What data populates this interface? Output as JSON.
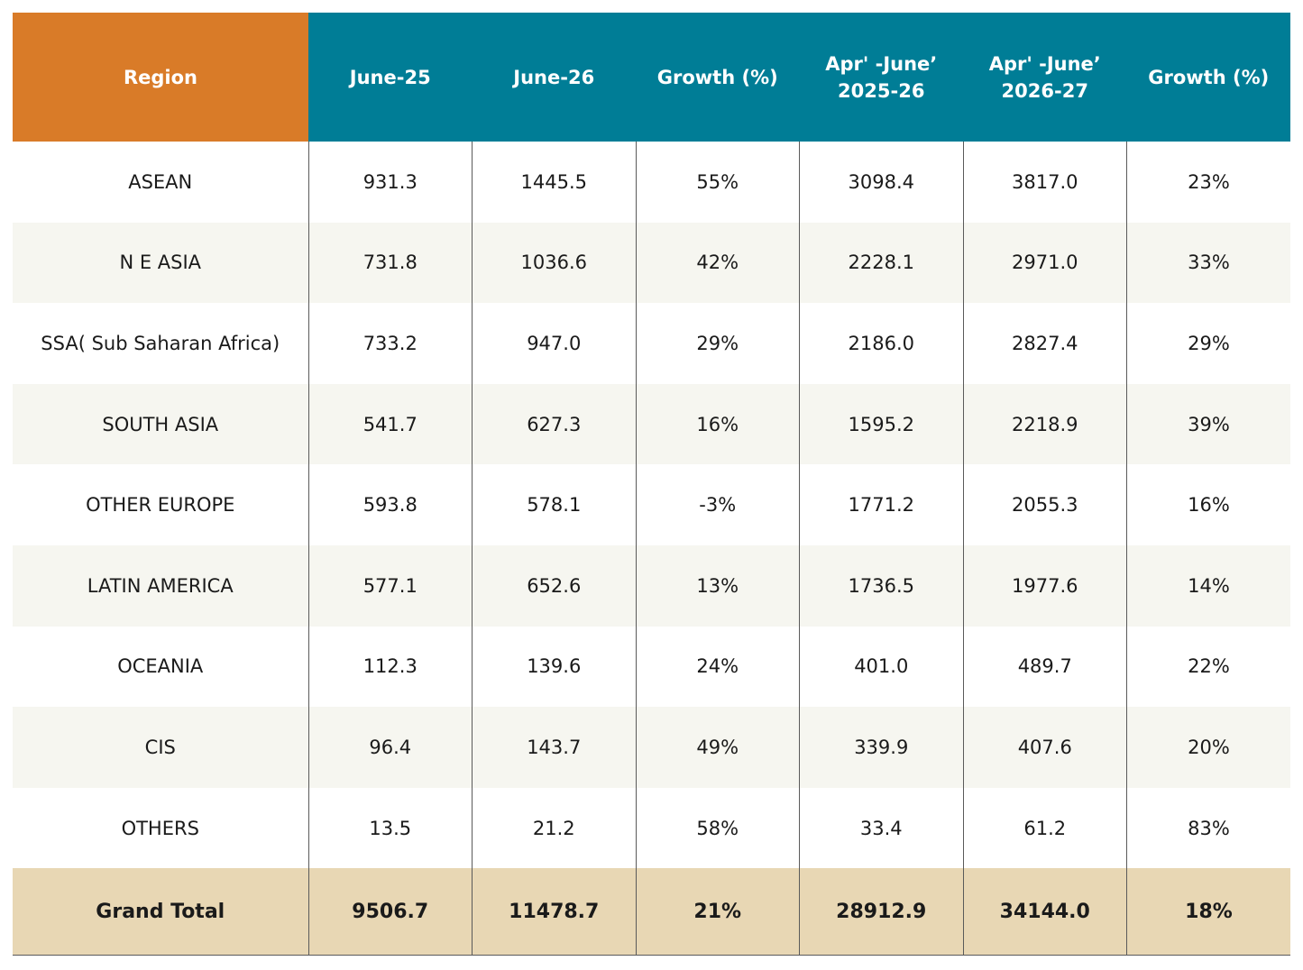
{
  "chart_data": {
    "type": "table",
    "columns": [
      "Region",
      "June-25",
      "June-26",
      "Growth (%)",
      "Apr' -June’ 2025-26",
      "Apr' -June’ 2026-27",
      "Growth (%)"
    ],
    "rows": [
      [
        "ASEAN",
        "931.3",
        "1445.5",
        "55%",
        "3098.4",
        "3817.0",
        "23%"
      ],
      [
        "N E ASIA",
        "731.8",
        "1036.6",
        "42%",
        "2228.1",
        "2971.0",
        "33%"
      ],
      [
        "SSA( Sub Saharan Africa)",
        "733.2",
        "947.0",
        "29%",
        "2186.0",
        "2827.4",
        "29%"
      ],
      [
        "SOUTH ASIA",
        "541.7",
        "627.3",
        "16%",
        "1595.2",
        "2218.9",
        "39%"
      ],
      [
        "OTHER EUROPE",
        "593.8",
        "578.1",
        "-3%",
        "1771.2",
        "2055.3",
        "16%"
      ],
      [
        "LATIN AMERICA",
        "577.1",
        "652.6",
        "13%",
        "1736.5",
        "1977.6",
        "14%"
      ],
      [
        "OCEANIA",
        "112.3",
        "139.6",
        "24%",
        "401.0",
        "489.7",
        "22%"
      ],
      [
        "CIS",
        "96.4",
        "143.7",
        "49%",
        "339.9",
        "407.6",
        "20%"
      ],
      [
        "OTHERS",
        "13.5",
        "21.2",
        "58%",
        "33.4",
        "61.2",
        "83%"
      ]
    ],
    "total": [
      "Grand Total",
      "9506.7",
      "11478.7",
      "21%",
      "28912.9",
      "34144.0",
      "18%"
    ],
    "colors": {
      "region_header": "#d97b28",
      "header": "#007d96",
      "total_row": "#e8d7b4",
      "alt_row": "#f6f6f0"
    }
  }
}
